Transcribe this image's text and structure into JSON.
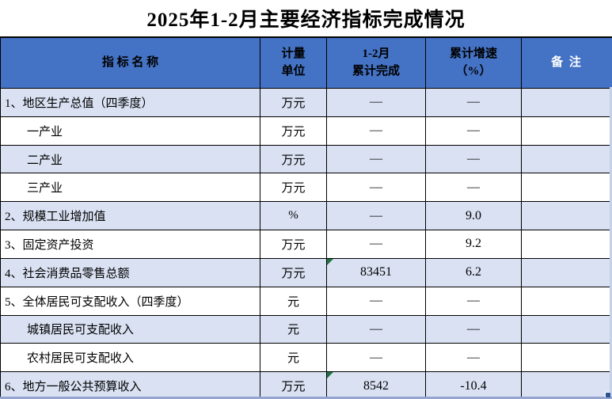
{
  "title": "2025年1-2月主要经济指标完成情况",
  "colors": {
    "header_bg": "#4472C4",
    "row_alt_bg": "#D9E1F2",
    "row_bg": "#FFFFFF",
    "border": "#000000",
    "header_text": "#000000",
    "remark_header_text": "#FFFFFF",
    "comment_flag_green": "#1F7244",
    "selection_blue": "#2E5395"
  },
  "table": {
    "header": {
      "name": "指    标    名    称",
      "unit": "计量\n单位",
      "completed": "1-2月\n累计完成",
      "growth": "累计增速\n（%）",
      "remark": "备  注"
    },
    "rows": [
      {
        "name": "1、地区生产总值（四季度）",
        "unit": "万元",
        "value": "—",
        "growth": "—",
        "remark": "",
        "indent": false,
        "comment_flag": false
      },
      {
        "name": "一产业",
        "unit": "万元",
        "value": "—",
        "growth": "—",
        "remark": "",
        "indent": true,
        "comment_flag": false
      },
      {
        "name": "二产业",
        "unit": "万元",
        "value": "—",
        "growth": "—",
        "remark": "",
        "indent": true,
        "comment_flag": false
      },
      {
        "name": "三产业",
        "unit": "万元",
        "value": "—",
        "growth": "—",
        "remark": "",
        "indent": true,
        "comment_flag": false
      },
      {
        "name": "2、规模工业增加值",
        "unit": "%",
        "value": "—",
        "growth": "9.0",
        "remark": "",
        "indent": false,
        "comment_flag": false
      },
      {
        "name": "3、固定资产投资",
        "unit": "万元",
        "value": "—",
        "growth": "9.2",
        "remark": "",
        "indent": false,
        "comment_flag": false
      },
      {
        "name": "4、社会消费品零售总额",
        "unit": "万元",
        "value": "83451",
        "growth": "6.2",
        "remark": "",
        "indent": false,
        "comment_flag": true
      },
      {
        "name": "5、全体居民可支配收入（四季度）",
        "unit": "元",
        "value": "—",
        "growth": "—",
        "remark": "",
        "indent": false,
        "comment_flag": false
      },
      {
        "name": "城镇居民可支配收入",
        "unit": "元",
        "value": "—",
        "growth": "—",
        "remark": "",
        "indent": true,
        "comment_flag": false
      },
      {
        "name": "农村居民可支配收入",
        "unit": "元",
        "value": "—",
        "growth": "—",
        "remark": "",
        "indent": true,
        "comment_flag": false
      },
      {
        "name": "6、地方一般公共预算收入",
        "unit": "万元",
        "value": "8542",
        "growth": "-10.4",
        "remark": "",
        "indent": false,
        "comment_flag": true
      }
    ]
  }
}
